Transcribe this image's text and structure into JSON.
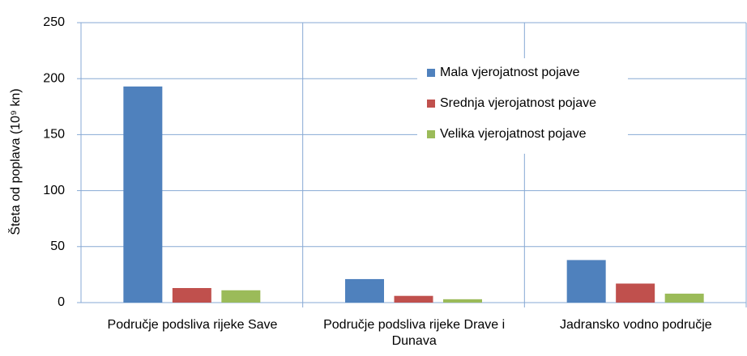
{
  "chart_data": {
    "type": "bar",
    "ylabel": "Šteta od poplava (10⁹ kn)",
    "categories": [
      "Područje podsliva rijeke Save",
      "Područje podsliva rijeke Drave i Dunava",
      "Jadransko vodno područje"
    ],
    "series": [
      {
        "name": "Mala vjerojatnost pojave",
        "color": "#4f81bd",
        "values": [
          193,
          21,
          38
        ]
      },
      {
        "name": "Srednja vjerojatnost pojave",
        "color": "#c0504d",
        "values": [
          13,
          6,
          17
        ]
      },
      {
        "name": "Velika vjerojatnost pojave",
        "color": "#9bbb59",
        "values": [
          11,
          3,
          8
        ]
      }
    ],
    "ylim": [
      0,
      250
    ],
    "yticks": [
      0,
      50,
      100,
      150,
      200,
      250
    ],
    "grid": true
  }
}
